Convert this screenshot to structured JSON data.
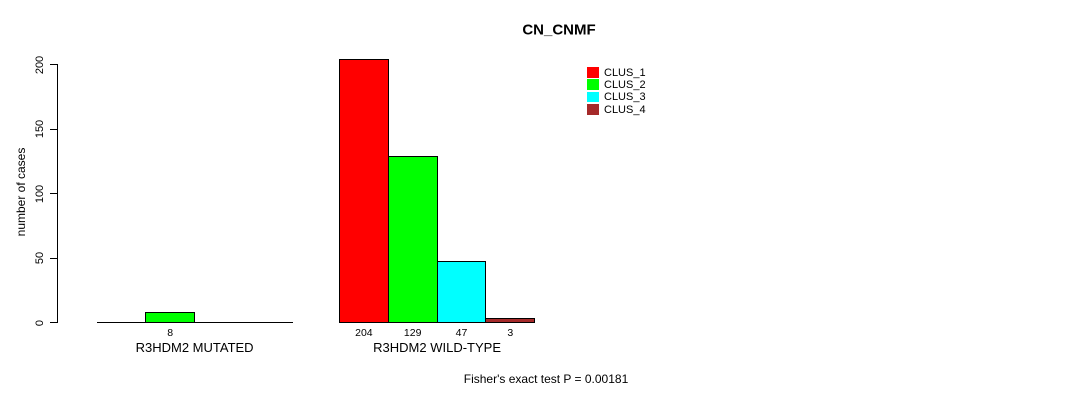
{
  "chart_data": {
    "type": "bar",
    "title": "CN_CNMF",
    "xlabel": "",
    "ylabel": "number of cases",
    "ylim": [
      0,
      200
    ],
    "yticks": [
      0,
      50,
      100,
      150,
      200
    ],
    "grid": false,
    "categories": [
      "R3HDM2 MUTATED",
      "R3HDM2 WILD-TYPE"
    ],
    "series": [
      {
        "name": "CLUS_1",
        "color": "#ff0000",
        "values": [
          0,
          204
        ]
      },
      {
        "name": "CLUS_2",
        "color": "#00ff00",
        "values": [
          8,
          129
        ]
      },
      {
        "name": "CLUS_3",
        "color": "#00ffff",
        "values": [
          0,
          47
        ]
      },
      {
        "name": "CLUS_4",
        "color": "#a52a2a",
        "values": [
          0,
          3
        ]
      }
    ],
    "bar_value_labels_shown": [
      "8",
      "204",
      "129",
      "47",
      "3"
    ],
    "show_zero_value_labels": false,
    "legend": {
      "position": "top-right"
    },
    "footnote": "Fisher's exact test P = 0.00181"
  }
}
